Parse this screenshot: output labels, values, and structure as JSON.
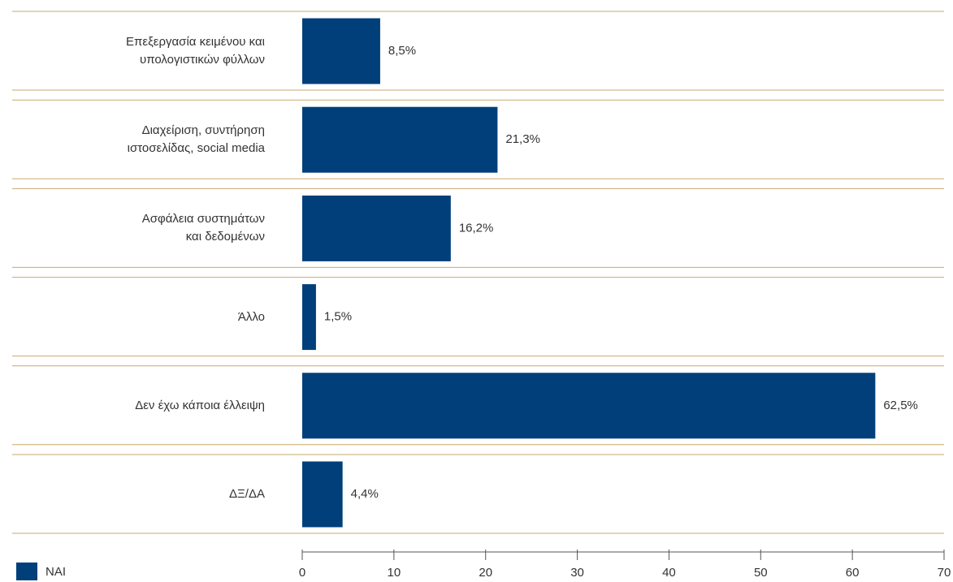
{
  "chart_data": {
    "type": "hbar",
    "categories": [
      "Επεξεργασία κειμένου και\nυπολογιστικών φύλλων",
      "Διαχείριση, συντήρηση\nιστοσελίδας, social media",
      "Ασφάλεια συστημάτων\nκαι δεδομένων",
      "Άλλο",
      "Δεν έχω κάποια έλλειψη",
      "ΔΞ/ΔΑ"
    ],
    "series": [
      {
        "name": "ΝΑΙ",
        "color": "#003f7a",
        "values": [
          8.5,
          21.3,
          16.2,
          1.5,
          62.5,
          4.4
        ],
        "value_labels": [
          "8,5%",
          "21,3%",
          "16,2%",
          "1,5%",
          "62,5%",
          "4,4%"
        ]
      }
    ],
    "xlim": [
      0,
      70
    ],
    "xticks": [
      0,
      10,
      20,
      30,
      40,
      50,
      60,
      70
    ],
    "legend": "bottom-left"
  }
}
